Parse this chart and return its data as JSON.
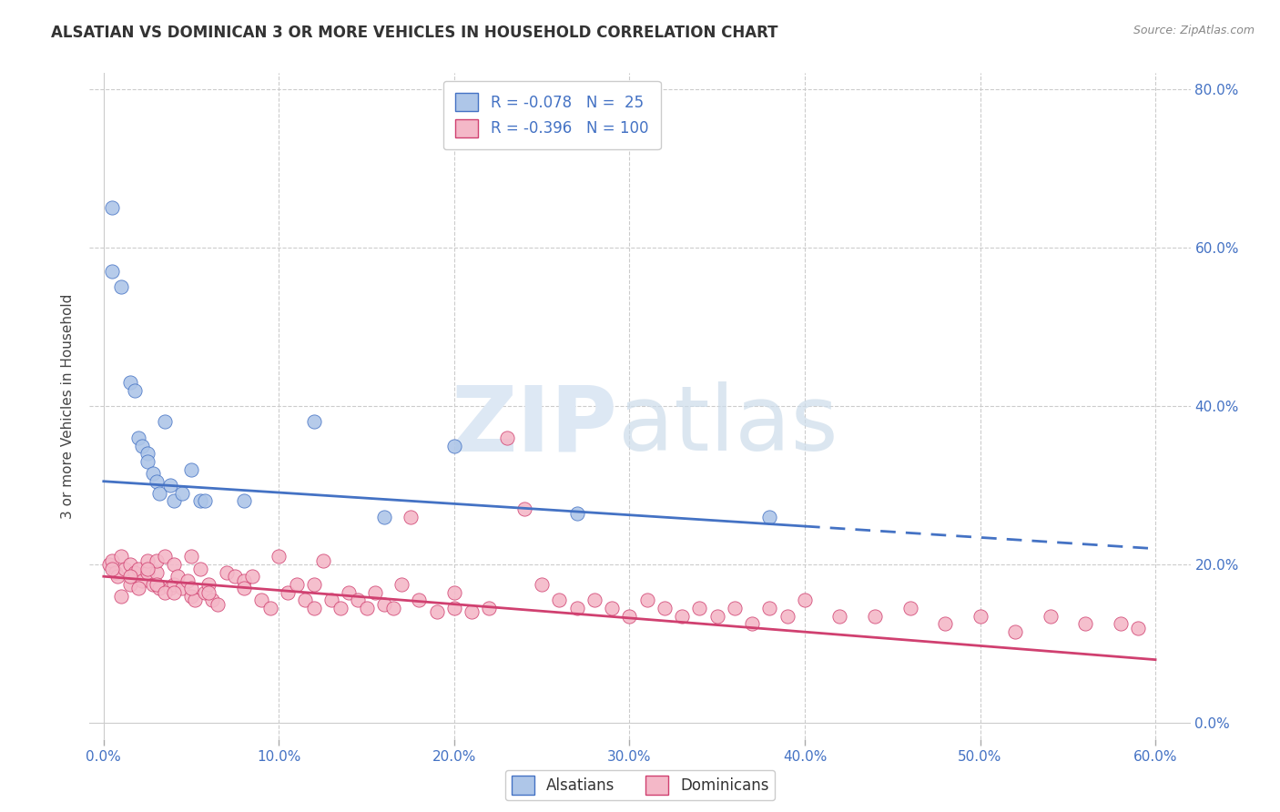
{
  "title": "ALSATIAN VS DOMINICAN 3 OR MORE VEHICLES IN HOUSEHOLD CORRELATION CHART",
  "source": "Source: ZipAtlas.com",
  "ylabel": "3 or more Vehicles in Household",
  "xlim": [
    0,
    60
  ],
  "ylim": [
    0,
    80
  ],
  "alsatian_R": -0.078,
  "alsatian_N": 25,
  "dominican_R": -0.396,
  "dominican_N": 100,
  "alsatian_color": "#aec6e8",
  "alsatian_line_color": "#4472c4",
  "dominican_color": "#f4b8c8",
  "dominican_line_color": "#d04070",
  "blue_line_y0": 30.5,
  "blue_line_y60": 22.0,
  "blue_solid_end_x": 40,
  "pink_line_y0": 18.5,
  "pink_line_y60": 8.0,
  "alsatian_x": [
    0.5,
    0.5,
    1.0,
    1.5,
    1.8,
    2.0,
    2.2,
    2.5,
    2.5,
    2.8,
    3.0,
    3.2,
    3.5,
    3.8,
    4.0,
    4.5,
    5.0,
    5.5,
    5.8,
    8.0,
    12.0,
    16.0,
    20.0,
    27.0,
    38.0
  ],
  "alsatian_y": [
    65.0,
    57.0,
    55.0,
    43.0,
    42.0,
    36.0,
    35.0,
    34.0,
    33.0,
    31.5,
    30.5,
    29.0,
    38.0,
    30.0,
    28.0,
    29.0,
    32.0,
    28.0,
    28.0,
    28.0,
    38.0,
    26.0,
    35.0,
    26.5,
    26.0
  ],
  "dominican_x": [
    0.3,
    0.5,
    0.7,
    0.8,
    1.0,
    1.2,
    1.5,
    1.5,
    1.8,
    2.0,
    2.2,
    2.5,
    2.5,
    2.8,
    3.0,
    3.0,
    3.2,
    3.5,
    3.8,
    4.0,
    4.0,
    4.2,
    4.5,
    4.8,
    5.0,
    5.0,
    5.2,
    5.5,
    5.8,
    6.0,
    6.2,
    6.5,
    7.0,
    7.5,
    8.0,
    8.0,
    8.5,
    9.0,
    9.5,
    10.0,
    10.5,
    11.0,
    11.5,
    12.0,
    12.0,
    12.5,
    13.0,
    13.5,
    14.0,
    14.5,
    15.0,
    15.5,
    16.0,
    16.5,
    17.0,
    17.5,
    18.0,
    19.0,
    20.0,
    20.0,
    21.0,
    22.0,
    23.0,
    24.0,
    25.0,
    26.0,
    27.0,
    28.0,
    29.0,
    30.0,
    31.0,
    32.0,
    33.0,
    34.0,
    35.0,
    36.0,
    37.0,
    38.0,
    39.0,
    40.0,
    42.0,
    44.0,
    46.0,
    48.0,
    50.0,
    52.0,
    54.0,
    56.0,
    58.0,
    59.0,
    0.5,
    1.0,
    1.5,
    2.0,
    2.5,
    3.0,
    3.5,
    4.0,
    5.0,
    6.0
  ],
  "dominican_y": [
    20.0,
    20.5,
    19.0,
    18.5,
    21.0,
    19.5,
    20.0,
    17.5,
    19.0,
    19.5,
    18.0,
    19.0,
    20.5,
    17.5,
    19.0,
    20.5,
    17.0,
    21.0,
    17.0,
    20.0,
    17.5,
    18.5,
    17.0,
    18.0,
    16.0,
    21.0,
    15.5,
    19.5,
    16.5,
    17.5,
    15.5,
    15.0,
    19.0,
    18.5,
    18.0,
    17.0,
    18.5,
    15.5,
    14.5,
    21.0,
    16.5,
    17.5,
    15.5,
    14.5,
    17.5,
    20.5,
    15.5,
    14.5,
    16.5,
    15.5,
    14.5,
    16.5,
    15.0,
    14.5,
    17.5,
    26.0,
    15.5,
    14.0,
    16.5,
    14.5,
    14.0,
    14.5,
    36.0,
    27.0,
    17.5,
    15.5,
    14.5,
    15.5,
    14.5,
    13.5,
    15.5,
    14.5,
    13.5,
    14.5,
    13.5,
    14.5,
    12.5,
    14.5,
    13.5,
    15.5,
    13.5,
    13.5,
    14.5,
    12.5,
    13.5,
    11.5,
    13.5,
    12.5,
    12.5,
    12.0,
    19.5,
    16.0,
    18.5,
    17.0,
    19.5,
    17.5,
    16.5,
    16.5,
    17.0,
    16.5
  ]
}
